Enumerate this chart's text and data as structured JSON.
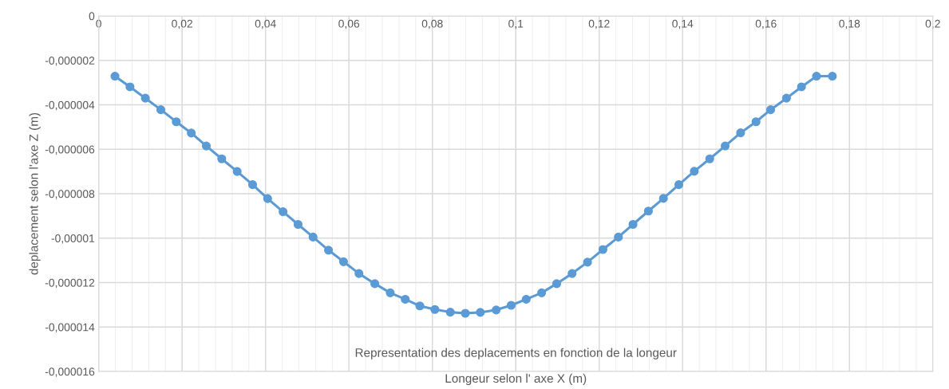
{
  "chart_data": {
    "type": "line",
    "title": "Representation des deplacements en fonction de la longeur",
    "xlabel": "Longeur selon l' axe X (m)",
    "ylabel": "deplacement selon l'axe Z (m)",
    "x": [
      0.0039,
      0.0075,
      0.0112,
      0.0149,
      0.0186,
      0.0222,
      0.0258,
      0.0295,
      0.0332,
      0.0369,
      0.0405,
      0.0442,
      0.0478,
      0.0514,
      0.0551,
      0.0587,
      0.0624,
      0.0662,
      0.0699,
      0.0735,
      0.077,
      0.0806,
      0.0843,
      0.0879,
      0.0915,
      0.0953,
      0.0989,
      0.1025,
      0.1062,
      0.1098,
      0.1135,
      0.1172,
      0.1209,
      0.1246,
      0.1281,
      0.1318,
      0.1354,
      0.1391,
      0.1428,
      0.1465,
      0.1502,
      0.1539,
      0.1576,
      0.1611,
      0.1649,
      0.1685,
      0.1721,
      0.1759
    ],
    "series": [
      {
        "color": "#5b9bd5",
        "values": [
          -2.71e-06,
          -3.19e-06,
          -3.7e-06,
          -4.22e-06,
          -4.76e-06,
          -5.27e-06,
          -5.85e-06,
          -6.43e-06,
          -7e-06,
          -7.59e-06,
          -8.22e-06,
          -8.81e-06,
          -9.38e-06,
          -9.95e-06,
          -1.054e-05,
          -1.106e-05,
          -1.159e-05,
          -1.205e-05,
          -1.246e-05,
          -1.275e-05,
          -1.305e-05,
          -1.321e-05,
          -1.333e-05,
          -1.338e-05,
          -1.334e-05,
          -1.323e-05,
          -1.302e-05,
          -1.275e-05,
          -1.246e-05,
          -1.205e-05,
          -1.159e-05,
          -1.108e-05,
          -1.051e-05,
          -9.95e-06,
          -9.38e-06,
          -8.78e-06,
          -8.21e-06,
          -7.59e-06,
          -6.99e-06,
          -6.43e-06,
          -5.85e-06,
          -5.26e-06,
          -4.76e-06,
          -4.22e-06,
          -3.7e-06,
          -3.19e-06,
          -2.71e-06,
          -2.71e-06
        ]
      }
    ],
    "xlim": [
      0,
      0.2
    ],
    "xticks": [
      0,
      {
        "value": 0.02,
        "label": "0,02"
      },
      {
        "value": 0.04,
        "label": "0,04"
      },
      {
        "value": 0.06,
        "label": "0,06"
      },
      {
        "value": 0.08,
        "label": "0,08"
      },
      {
        "value": 0.1,
        "label": "0,1"
      },
      {
        "value": 0.12,
        "label": "0,12"
      },
      {
        "value": 0.14,
        "label": "0,14"
      },
      {
        "value": 0.16,
        "label": "0,16"
      },
      {
        "value": 0.18,
        "label": "0,18"
      },
      {
        "value": 0.2,
        "label": "0,2"
      }
    ],
    "ylim": [
      -1.6e-05,
      0
    ],
    "yticks": [
      0,
      {
        "value": -2e-06,
        "label": "-0,000002"
      },
      {
        "value": -4e-06,
        "label": "-0,000004"
      },
      {
        "value": -6e-06,
        "label": "-0,000006"
      },
      {
        "value": -8e-06,
        "label": "-0,000008"
      },
      {
        "value": -1e-05,
        "label": "-0,00001"
      },
      {
        "value": -1.2e-05,
        "label": "-0,000012"
      },
      {
        "value": -1.4e-05,
        "label": "-0,000014"
      },
      {
        "value": -1.6e-05,
        "label": "-0,000016"
      }
    ],
    "grid": true,
    "marker": "circle",
    "line_style": "solid",
    "legend": false
  }
}
